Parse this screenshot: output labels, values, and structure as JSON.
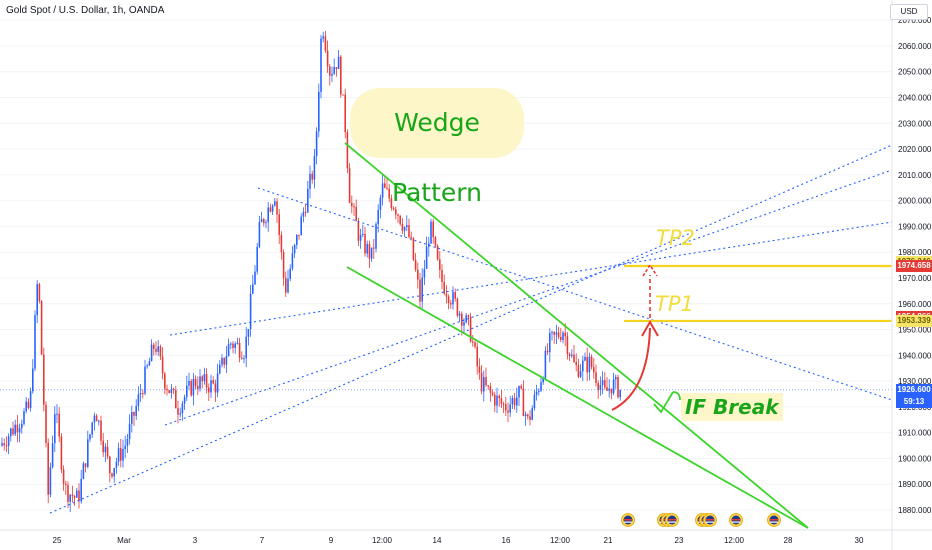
{
  "header": {
    "title": "Gold Spot / U.S. Dollar, 1h, OANDA",
    "currency": "USD"
  },
  "chart_data": {
    "type": "candlestick",
    "symbol": "Gold Spot / U.S. Dollar",
    "interval": "1h",
    "source": "OANDA",
    "y_range": [
      1870,
      2072
    ],
    "y_ticks": [
      1880,
      1890,
      1900,
      1910,
      1920,
      1930,
      1940,
      1950,
      1960,
      1970,
      1980,
      1990,
      2000,
      2010,
      2020,
      2030,
      2040,
      2050,
      2060,
      2070
    ],
    "y_tick_labels": [
      "1880.000",
      "1890.000",
      "1900.000",
      "1910.000",
      "1920.000",
      "1930.000",
      "1940.000",
      "1950.000",
      "1960.000",
      "1970.000",
      "1980.000",
      "1990.000",
      "2000.000",
      "2010.000",
      "2020.000",
      "2030.000",
      "2040.000",
      "2050.000",
      "2060.000",
      "2070.000"
    ],
    "x_labels": [
      "25",
      "Mar",
      "3",
      "7",
      "9",
      "12:00",
      "14",
      "16",
      "12:00",
      "21",
      "23",
      "12:00",
      "28",
      "30"
    ],
    "price_path": [
      [
        0,
        1905
      ],
      [
        30,
        1920
      ],
      [
        38,
        1972
      ],
      [
        48,
        1885
      ],
      [
        55,
        1920
      ],
      [
        65,
        1888
      ],
      [
        78,
        1884
      ],
      [
        95,
        1920
      ],
      [
        110,
        1895
      ],
      [
        125,
        1905
      ],
      [
        140,
        1925
      ],
      [
        155,
        1945
      ],
      [
        165,
        1930
      ],
      [
        178,
        1920
      ],
      [
        195,
        1930
      ],
      [
        215,
        1928
      ],
      [
        230,
        1945
      ],
      [
        245,
        1942
      ],
      [
        260,
        1990
      ],
      [
        275,
        2003
      ],
      [
        285,
        1965
      ],
      [
        300,
        1990
      ],
      [
        315,
        2015
      ],
      [
        322,
        2070
      ],
      [
        330,
        2050
      ],
      [
        338,
        2055
      ],
      [
        345,
        2030
      ],
      [
        350,
        2000
      ],
      [
        360,
        1985
      ],
      [
        372,
        1978
      ],
      [
        382,
        2005
      ],
      [
        395,
        1998
      ],
      [
        410,
        1985
      ],
      [
        420,
        1962
      ],
      [
        430,
        1990
      ],
      [
        440,
        1970
      ],
      [
        455,
        1960
      ],
      [
        470,
        1950
      ],
      [
        480,
        1930
      ],
      [
        490,
        1925
      ],
      [
        505,
        1920
      ],
      [
        520,
        1925
      ],
      [
        528,
        1914
      ],
      [
        540,
        1930
      ],
      [
        550,
        1945
      ],
      [
        563,
        1950
      ],
      [
        575,
        1935
      ],
      [
        590,
        1937
      ],
      [
        605,
        1925
      ],
      [
        612,
        1929
      ],
      [
        622,
        1926
      ]
    ],
    "levels": [
      {
        "name": "TP2",
        "price": 1974.658,
        "color": "#f5d31f"
      },
      {
        "name": "TP1",
        "price": 1953.339,
        "color": "#f5d31f"
      }
    ],
    "price_tags": [
      {
        "label": "1976.346",
        "price": 1976.346,
        "bg": "#f7e56a",
        "fg": "#6b5e00"
      },
      {
        "label": "1974.658",
        "price": 1974.658,
        "bg": "#e53935",
        "fg": "#ffffff"
      },
      {
        "label": "1954.866",
        "price": 1954.866,
        "bg": "#e53935",
        "fg": "#ffffff"
      },
      {
        "label": "1953.339",
        "price": 1953.339,
        "bg": "#f7e56a",
        "fg": "#6b5e00"
      },
      {
        "label": "1926.600",
        "price": 1926.6,
        "bg": "#2962ff",
        "fg": "#ffffff"
      }
    ],
    "countdown": "59:13",
    "current_price": 1926.6,
    "wedge_upper": [
      [
        2023,
        9.2
      ],
      [
        1876,
        27.9
      ]
    ],
    "wedge_lower": [
      [
        1973,
        9.2
      ],
      [
        1876,
        27.9
      ]
    ],
    "colors": {
      "up": "#2962ff",
      "down": "#e53935",
      "wedge": "#3cd42a",
      "guides": "#2962ff",
      "target": "#f5d31f"
    }
  },
  "annotations": {
    "wedge_label": "Wedge Pattern",
    "tp2": "TP2",
    "tp1": "TP1",
    "if_break": "IF Break"
  },
  "icons": [
    "us-flag-event-icon",
    "us-flag-event-icon",
    "us-flag-event-icon",
    "us-flag-event-icon",
    "us-flag-event-icon",
    "us-flag-event-icon"
  ]
}
